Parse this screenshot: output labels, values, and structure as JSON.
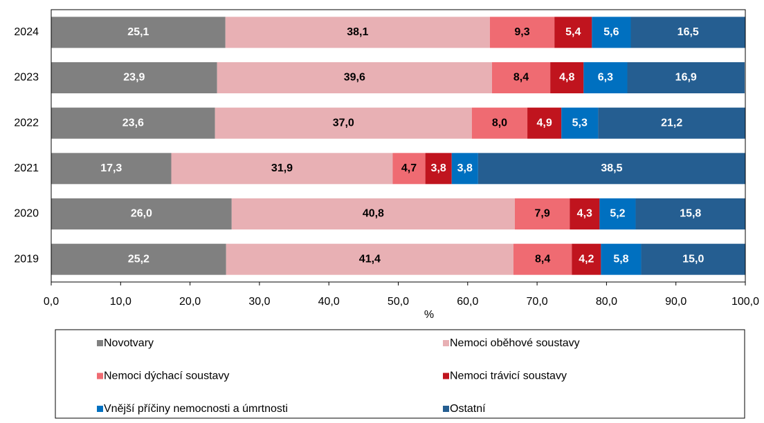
{
  "chart_data": {
    "type": "stacked-bar-horizontal",
    "xlabel": "%",
    "categories": [
      "2024",
      "2023",
      "2022",
      "2021",
      "2020",
      "2019"
    ],
    "series": [
      {
        "name": "Novotvary",
        "color": "#808080",
        "label_color": "#ffffff",
        "values": [
          25.1,
          23.9,
          23.6,
          17.3,
          26.0,
          25.2
        ],
        "value_labels": [
          "25,1",
          "23,9",
          "23,6",
          "17,3",
          "26,0",
          "25,2"
        ]
      },
      {
        "name": "Nemoci oběhové soustavy",
        "color": "#e8b0b4",
        "label_color": "#000000",
        "values": [
          38.1,
          39.6,
          37.0,
          31.9,
          40.8,
          41.4
        ],
        "value_labels": [
          "38,1",
          "39,6",
          "37,0",
          "31,9",
          "40,8",
          "41,4"
        ]
      },
      {
        "name": "Nemoci dýchací soustavy",
        "color": "#ef6b72",
        "label_color": "#000000",
        "values": [
          9.3,
          8.4,
          8.0,
          4.7,
          7.9,
          8.4
        ],
        "value_labels": [
          "9,3",
          "8,4",
          "8,0",
          "4,7",
          "7,9",
          "8,4"
        ]
      },
      {
        "name": "Nemoci trávicí soustavy",
        "color": "#c0141e",
        "label_color": "#ffffff",
        "values": [
          5.4,
          4.8,
          4.9,
          3.8,
          4.3,
          4.2
        ],
        "value_labels": [
          "5,4",
          "4,8",
          "4,9",
          "3,8",
          "4,3",
          "4,2"
        ]
      },
      {
        "name": "Vnější příčiny nemocnosti a úmrtnosti",
        "color": "#0070c0",
        "label_color": "#ffffff",
        "values": [
          5.6,
          6.3,
          5.3,
          3.8,
          5.2,
          5.8
        ],
        "value_labels": [
          "5,6",
          "6,3",
          "5,3",
          "3,8",
          "5,2",
          "5,8"
        ]
      },
      {
        "name": "Ostatní",
        "color": "#255e91",
        "label_color": "#ffffff",
        "values": [
          16.5,
          16.9,
          21.2,
          38.5,
          15.8,
          15.0
        ],
        "value_labels": [
          "16,5",
          "16,9",
          "21,2",
          "38,5",
          "15,8",
          "15,0"
        ]
      }
    ],
    "xlim": [
      0,
      100
    ],
    "xticks": [
      {
        "value": 0,
        "label": "0,0"
      },
      {
        "value": 10,
        "label": "10,0"
      },
      {
        "value": 20,
        "label": "20,0"
      },
      {
        "value": 30,
        "label": "30,0"
      },
      {
        "value": 40,
        "label": "40,0"
      },
      {
        "value": 50,
        "label": "50,0"
      },
      {
        "value": 60,
        "label": "60,0"
      },
      {
        "value": 70,
        "label": "70,0"
      },
      {
        "value": 80,
        "label": "80,0"
      },
      {
        "value": 90,
        "label": "90,0"
      },
      {
        "value": 100,
        "label": "100,0"
      }
    ],
    "legend": "bottom"
  }
}
